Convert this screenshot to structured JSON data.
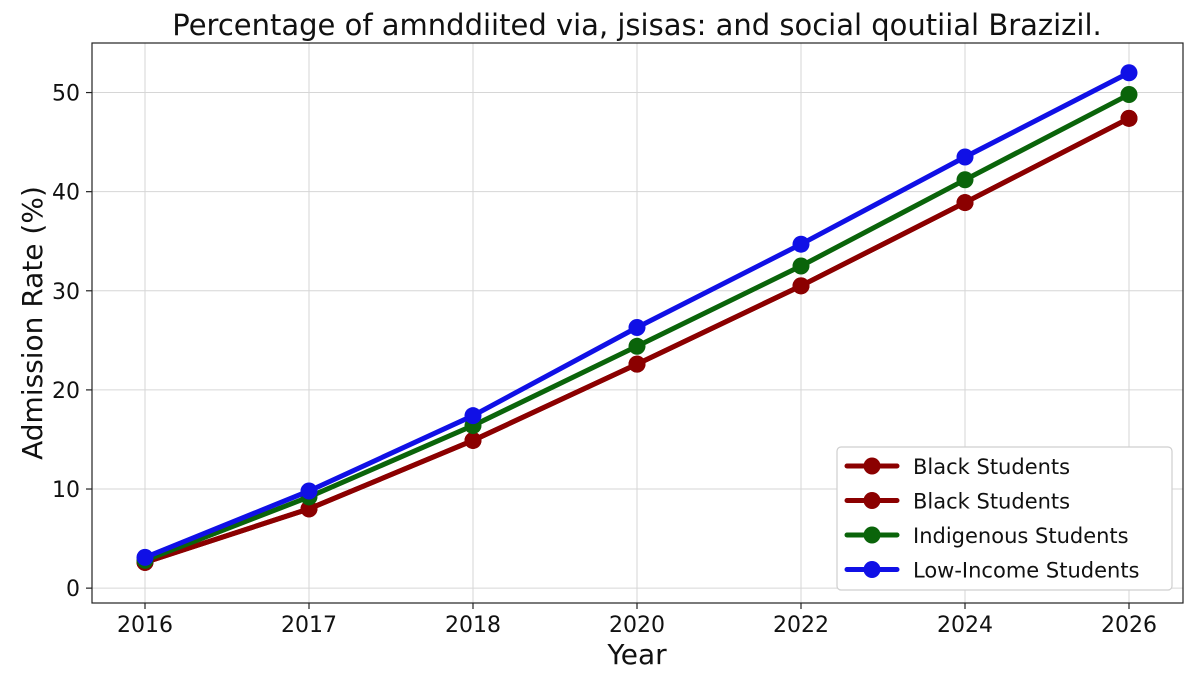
{
  "chart_data": {
    "type": "line",
    "title": "Percentage of amnddiited via, jsisas: and social qoutiial Brazizil.",
    "xlabel": "Year",
    "ylabel": "Admission Rate (%)",
    "categories": [
      "2016",
      "2017",
      "2018",
      "2020",
      "2022",
      "2024",
      "2026"
    ],
    "ylim": [
      -1.5,
      55
    ],
    "yticks": [
      0,
      10,
      20,
      30,
      40,
      50
    ],
    "grid": true,
    "legend_position": "lower-right",
    "series": [
      {
        "name": "Black Students",
        "color": "#8b0000",
        "values": [
          2.6,
          8.0,
          14.9,
          22.6,
          30.5,
          38.9,
          47.4
        ]
      },
      {
        "name": "Black Students",
        "color": "#8b0000",
        "values": [
          2.6,
          8.0,
          14.9,
          22.6,
          30.5,
          38.9,
          47.4
        ]
      },
      {
        "name": "Indigenous Students",
        "color": "#0a640a",
        "values": [
          2.8,
          9.2,
          16.4,
          24.4,
          32.5,
          41.2,
          49.8
        ]
      },
      {
        "name": "Low-Income Students",
        "color": "#1010e6",
        "values": [
          3.1,
          9.8,
          17.4,
          26.3,
          34.7,
          43.5,
          52.0
        ]
      }
    ]
  }
}
